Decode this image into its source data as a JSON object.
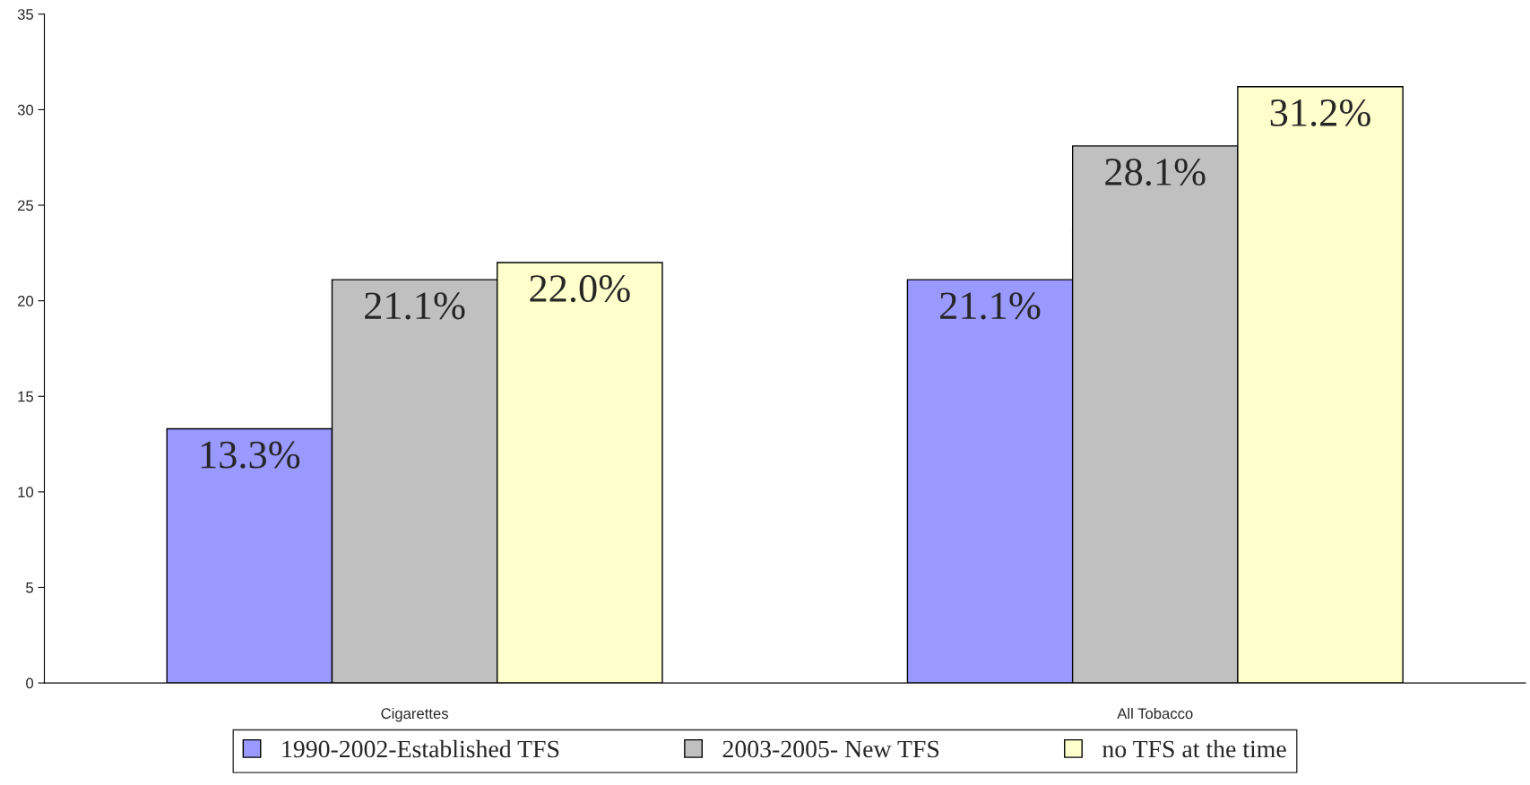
{
  "chart_data": {
    "type": "bar",
    "categories": [
      "Cigarettes",
      "All Tobacco"
    ],
    "series": [
      {
        "name": "1990-2002-Established TFS",
        "color": "#9999ff",
        "values": [
          13.3,
          21.1
        ],
        "value_labels": [
          "13.3%",
          "21.1%"
        ]
      },
      {
        "name": "2003-2005- New TFS",
        "color": "#c0c0c0",
        "values": [
          21.1,
          28.1
        ],
        "value_labels": [
          "21.1%",
          "28.1%"
        ]
      },
      {
        "name": "no TFS at the time",
        "color": "#ffffcc",
        "values": [
          22.0,
          31.2
        ],
        "value_labels": [
          "22.0%",
          "31.2%"
        ]
      }
    ],
    "ylim": [
      0,
      35
    ],
    "yticks": [
      0,
      5,
      10,
      15,
      20,
      25,
      30,
      35
    ],
    "grid": false,
    "legend": "bottom"
  }
}
